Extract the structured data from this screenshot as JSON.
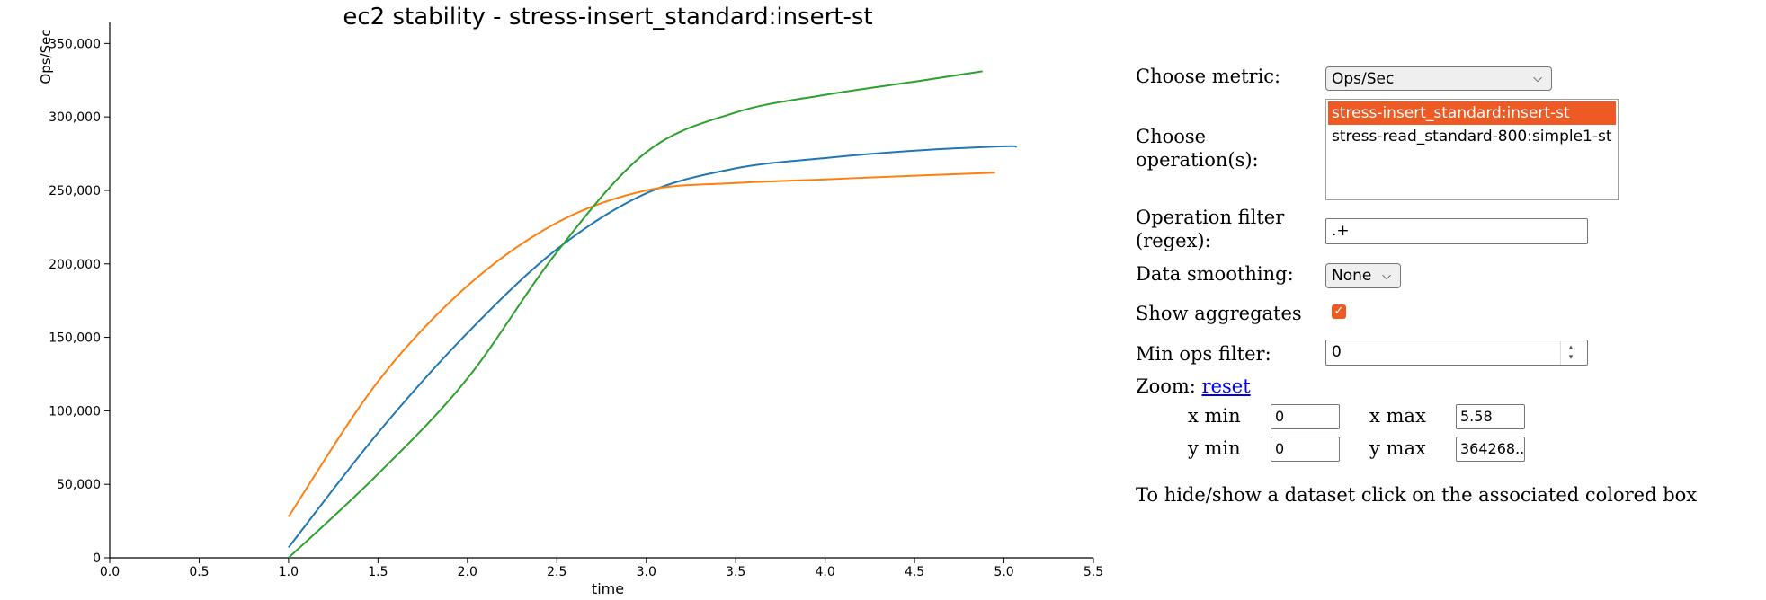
{
  "chart_data": {
    "type": "line",
    "title": "ec2 stability - stress-insert_standard:insert-st",
    "xlabel": "time",
    "ylabel": "Ops/Sec",
    "xlim": [
      0,
      5.5
    ],
    "ylim": [
      0,
      364268
    ],
    "x_ticks": [
      "0.0",
      "0.5",
      "1.0",
      "1.5",
      "2.0",
      "2.5",
      "3.0",
      "3.5",
      "4.0",
      "4.5",
      "5.0",
      "5.5"
    ],
    "y_ticks": [
      "0",
      "50,000",
      "100,000",
      "150,000",
      "200,000",
      "250,000",
      "300,000",
      "350,000"
    ],
    "grid": false,
    "series": [
      {
        "color": "#1f77b4",
        "x": [
          1.0,
          1.5,
          2.0,
          2.5,
          3.0,
          3.5,
          4.0,
          4.5,
          5.0,
          5.07
        ],
        "y": [
          7000,
          85000,
          153000,
          210000,
          248000,
          265000,
          272000,
          277000,
          280000,
          279500
        ]
      },
      {
        "color": "#ff7f0e",
        "x": [
          1.0,
          1.5,
          2.0,
          2.5,
          3.0,
          3.5,
          4.0,
          4.5,
          4.95
        ],
        "y": [
          28000,
          120000,
          185000,
          228000,
          250000,
          255000,
          257500,
          260000,
          262000
        ]
      },
      {
        "color": "#2ca02c",
        "x": [
          1.0,
          1.5,
          2.0,
          2.5,
          3.0,
          3.5,
          4.0,
          4.5,
          4.88
        ],
        "y": [
          0,
          57000,
          122000,
          208000,
          276000,
          303000,
          315000,
          324000,
          331000
        ]
      }
    ]
  },
  "controls": {
    "metric_label": "Choose metric:",
    "metric_value": "Ops/Sec",
    "operation_label_1": "Choose",
    "operation_label_2": "operation(s):",
    "operations": [
      "stress-insert_standard:insert-st",
      "stress-read_standard-800:simple1-st"
    ],
    "selected_operation": "stress-insert_standard:insert-st",
    "filter_label_1": "Operation filter",
    "filter_label_2": "(regex):",
    "filter_value": ".+",
    "smoothing_label": "Data smoothing:",
    "smoothing_value": "None",
    "aggregates_label": "Show aggregates",
    "aggregates_checked": true,
    "minops_label": "Min ops filter:",
    "minops_value": "0",
    "zoom_label": "Zoom:",
    "zoom_reset": "reset",
    "xmin_label": "x min",
    "xmin_value": "0",
    "xmax_label": "x max",
    "xmax_value": "5.58",
    "ymin_label": "y min",
    "ymin_value": "0",
    "ymax_label": "y max",
    "ymax_value": "364268..",
    "hint": "To hide/show a dataset click on the associated colored box",
    "accent_color": "#ee5a24"
  }
}
